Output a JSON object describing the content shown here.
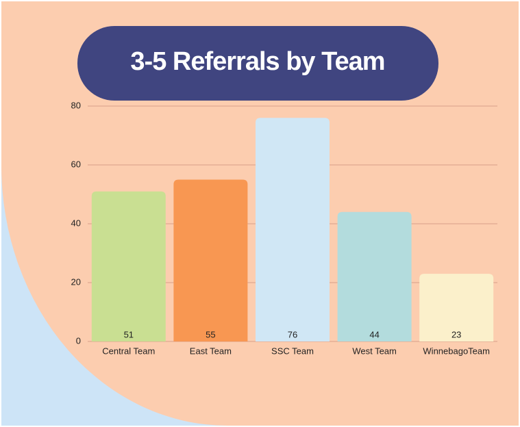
{
  "chart_data": {
    "type": "bar",
    "title": "3-5 Referrals by Team",
    "categories": [
      "Central Team",
      "East Team",
      "SSC Team",
      "West Team",
      "WinnebagoTeam"
    ],
    "values": [
      51,
      55,
      76,
      44,
      23
    ],
    "colors": [
      "#c9df92",
      "#f89752",
      "#d0e7f5",
      "#b3dcdd",
      "#fbf0cb"
    ],
    "ylim": [
      0,
      80
    ],
    "yticks": [
      0,
      20,
      40,
      60,
      80
    ],
    "grid": true
  }
}
